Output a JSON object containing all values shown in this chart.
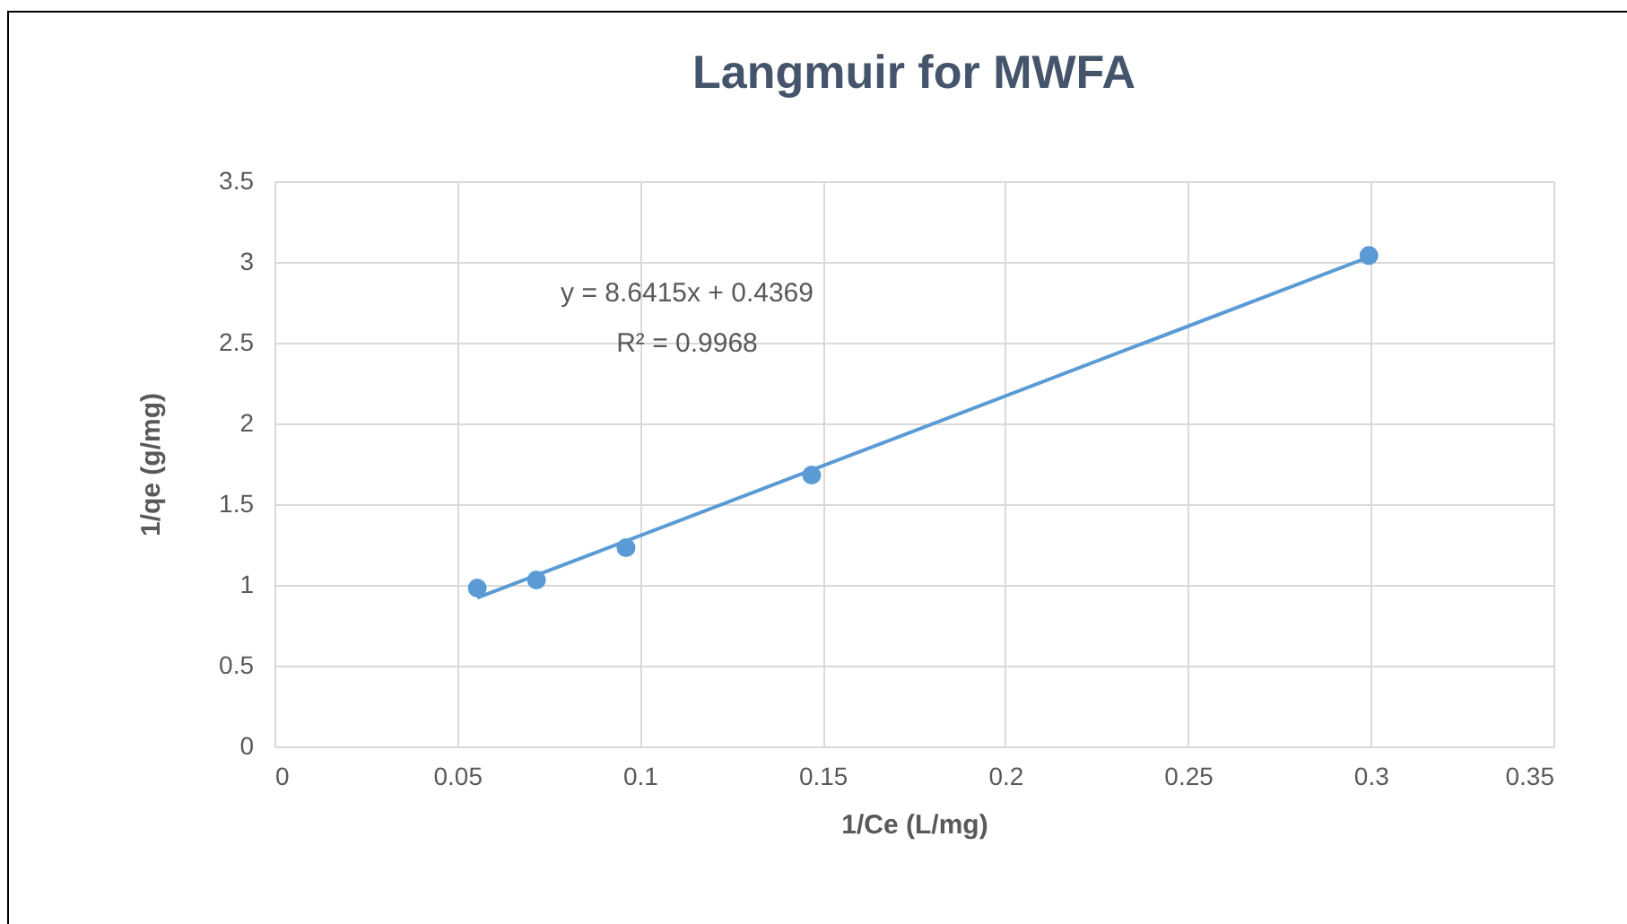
{
  "chart_data": {
    "type": "scatter",
    "title": "Langmuir for MWFA",
    "xlabel": "1/Ce (L/mg)",
    "ylabel": "1/qe (g/mg)",
    "xlim": [
      0,
      0.35
    ],
    "xticks": [
      0,
      0.05,
      0.1,
      0.15,
      0.2,
      0.25,
      0.3,
      0.35
    ],
    "ylim": [
      0,
      3.5
    ],
    "yticks": [
      0,
      0.5,
      1,
      1.5,
      2,
      2.5,
      3,
      3.5
    ],
    "grid": true,
    "series": [
      {
        "marker": "circle",
        "color": "#5b9bd5",
        "x": [
          0.0555,
          0.0717,
          0.0962,
          0.147,
          0.2995
        ],
        "values": [
          0.98,
          1.03,
          1.23,
          1.68,
          3.04
        ]
      },
      {
        "type": "line",
        "color": "#5b9bd5",
        "x": [
          0.0555,
          0.2995
        ],
        "values": [
          0.92,
          3.03
        ]
      }
    ],
    "annotations": [
      "y = 8.6415x + 0.4369",
      "R² = 0.9968"
    ]
  }
}
